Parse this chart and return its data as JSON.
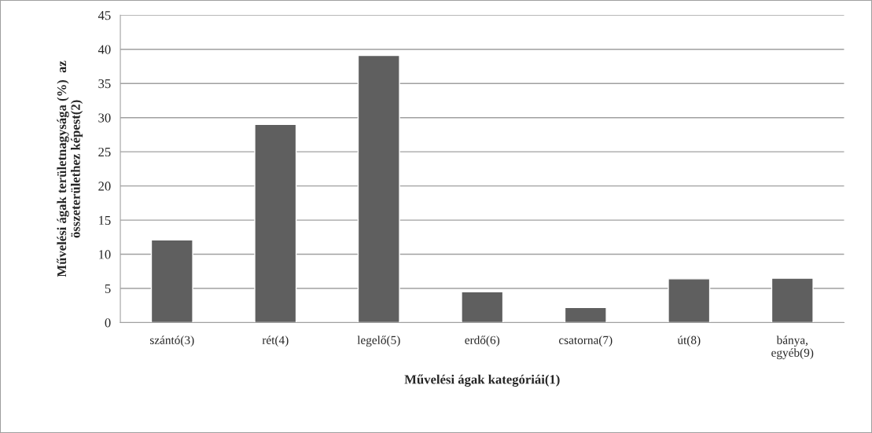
{
  "chart_data": {
    "type": "bar",
    "xlabel": "Művelési ágak kategóriái(1)",
    "ylabel": "Művelési ágak területnagysága (%)  az\nösszeterülethez képest(2)",
    "categories": [
      "szántó(3)",
      "rét(4)",
      "legelő(5)",
      "erdő(6)",
      "csatorna(7)",
      "út(8)",
      "bánya,\negyéb(9)"
    ],
    "values": [
      12.1,
      29.0,
      39.1,
      4.5,
      2.2,
      6.4,
      6.5
    ],
    "color": "#5f5f5f",
    "ylim": [
      0,
      45
    ],
    "yticks": [
      0,
      5,
      10,
      15,
      20,
      25,
      30,
      35,
      40,
      45
    ],
    "grid": "y",
    "legend": false
  }
}
